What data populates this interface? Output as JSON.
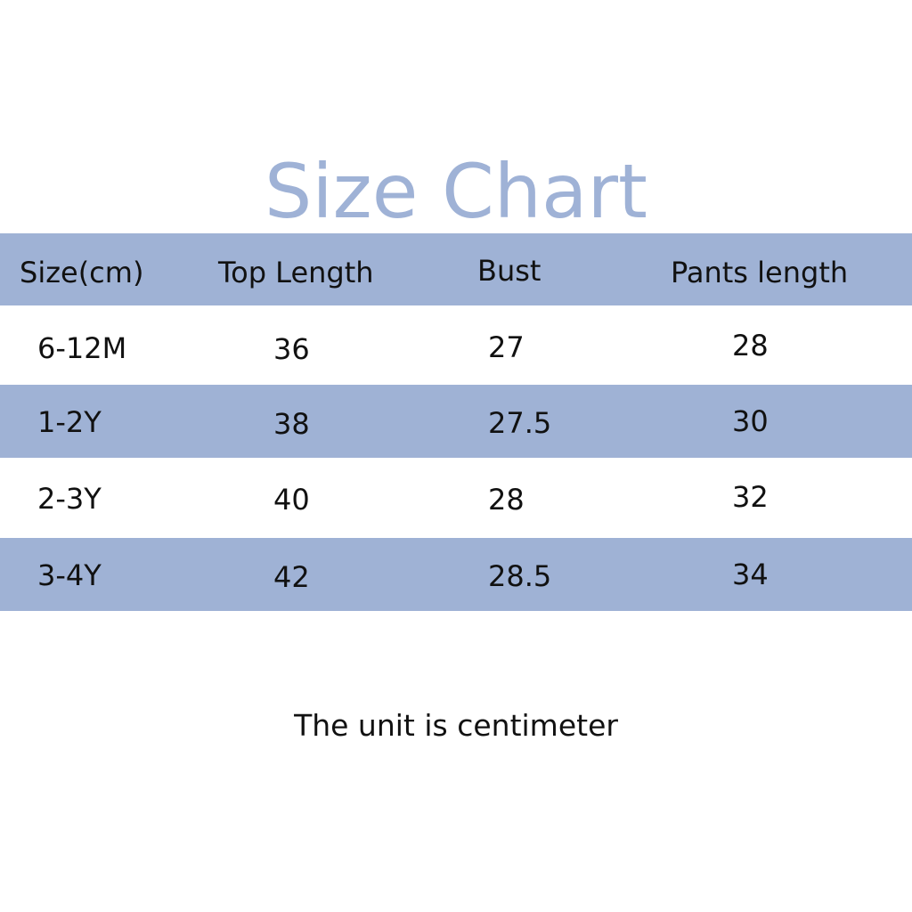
{
  "title": "Size Chart",
  "table": {
    "headers": [
      "Size(cm)",
      "Top Length",
      "Bust",
      "Pants length"
    ],
    "rows": [
      [
        "6-12M",
        "36",
        "27",
        "28"
      ],
      [
        "1-2Y",
        "38",
        "27.5",
        "30"
      ],
      [
        "2-3Y",
        "40",
        "28",
        "32"
      ],
      [
        "3-4Y",
        "42",
        "28.5",
        "34"
      ]
    ]
  },
  "footer": "The unit is centimeter",
  "colors": {
    "accent": "#9fb2d5",
    "title": "#9fb2d6"
  }
}
